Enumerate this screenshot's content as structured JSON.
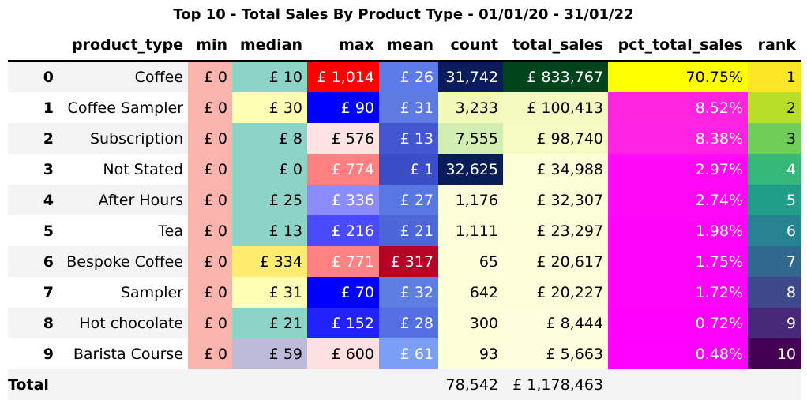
{
  "title": "Top 10 - Total Sales By Product Type - 01/01/20 - 31/01/22",
  "columns": [
    "",
    "product_type",
    "min",
    "median",
    "max",
    "mean",
    "count",
    "total_sales",
    "pct_total_sales",
    "rank"
  ],
  "rows": [
    {
      "idx": "0",
      "product_type": "Coffee",
      "min": "£ 0",
      "median": "£ 10",
      "max": "£ 1,014",
      "mean": "£ 26",
      "count": "31,742",
      "total_sales": "£ 833,767",
      "pct_total_sales": "70.75%",
      "rank": "1"
    },
    {
      "idx": "1",
      "product_type": "Coffee Sampler",
      "min": "£ 0",
      "median": "£ 30",
      "max": "£ 90",
      "mean": "£ 31",
      "count": "3,233",
      "total_sales": "£ 100,413",
      "pct_total_sales": "8.52%",
      "rank": "2"
    },
    {
      "idx": "2",
      "product_type": "Subscription",
      "min": "£ 0",
      "median": "£ 8",
      "max": "£ 576",
      "mean": "£ 13",
      "count": "7,555",
      "total_sales": "£ 98,740",
      "pct_total_sales": "8.38%",
      "rank": "3"
    },
    {
      "idx": "3",
      "product_type": "Not Stated",
      "min": "£ 0",
      "median": "£ 0",
      "max": "£ 774",
      "mean": "£ 1",
      "count": "32,625",
      "total_sales": "£ 34,988",
      "pct_total_sales": "2.97%",
      "rank": "4"
    },
    {
      "idx": "4",
      "product_type": "After Hours",
      "min": "£ 0",
      "median": "£ 25",
      "max": "£ 336",
      "mean": "£ 27",
      "count": "1,176",
      "total_sales": "£ 32,307",
      "pct_total_sales": "2.74%",
      "rank": "5"
    },
    {
      "idx": "5",
      "product_type": "Tea",
      "min": "£ 0",
      "median": "£ 13",
      "max": "£ 216",
      "mean": "£ 21",
      "count": "1,111",
      "total_sales": "£ 23,297",
      "pct_total_sales": "1.98%",
      "rank": "6"
    },
    {
      "idx": "6",
      "product_type": "Bespoke Coffee",
      "min": "£ 0",
      "median": "£ 334",
      "max": "£ 771",
      "mean": "£ 317",
      "count": "65",
      "total_sales": "£ 20,617",
      "pct_total_sales": "1.75%",
      "rank": "7"
    },
    {
      "idx": "7",
      "product_type": "Sampler",
      "min": "£ 0",
      "median": "£ 31",
      "max": "£ 70",
      "mean": "£ 32",
      "count": "642",
      "total_sales": "£ 20,227",
      "pct_total_sales": "1.72%",
      "rank": "8"
    },
    {
      "idx": "8",
      "product_type": "Hot chocolate",
      "min": "£ 0",
      "median": "£ 21",
      "max": "£ 152",
      "mean": "£ 28",
      "count": "300",
      "total_sales": "£ 8,444",
      "pct_total_sales": "0.72%",
      "rank": "9"
    },
    {
      "idx": "9",
      "product_type": "Barista Course",
      "min": "£ 0",
      "median": "£ 59",
      "max": "£ 600",
      "mean": "£ 61",
      "count": "93",
      "total_sales": "£ 5,663",
      "pct_total_sales": "0.48%",
      "rank": "10"
    }
  ],
  "total": {
    "label": "Total",
    "count": "78,542",
    "total_sales": "£ 1,178,463"
  },
  "cell_colors": {
    "min": [
      [
        "#fbb4ae",
        "#000"
      ],
      [
        "#fbb4ae",
        "#000"
      ],
      [
        "#fbb4ae",
        "#000"
      ],
      [
        "#fbb4ae",
        "#000"
      ],
      [
        "#fbb4ae",
        "#000"
      ],
      [
        "#fbb4ae",
        "#000"
      ],
      [
        "#fbb4ae",
        "#000"
      ],
      [
        "#fbb4ae",
        "#000"
      ],
      [
        "#fbb4ae",
        "#000"
      ],
      [
        "#fbb4ae",
        "#000"
      ]
    ],
    "median": [
      [
        "#8dd3c7",
        "#000"
      ],
      [
        "#ffffb3",
        "#000"
      ],
      [
        "#8dd3c7",
        "#000"
      ],
      [
        "#8dd3c7",
        "#000"
      ],
      [
        "#8dd3c7",
        "#000"
      ],
      [
        "#8dd3c7",
        "#000"
      ],
      [
        "#ffed6f",
        "#000"
      ],
      [
        "#ffffb3",
        "#000"
      ],
      [
        "#8dd3c7",
        "#000"
      ],
      [
        "#bebada",
        "#000"
      ]
    ],
    "max": [
      [
        "#ff0000",
        "#fff"
      ],
      [
        "#0000ff",
        "#fff"
      ],
      [
        "#ffe4e4",
        "#000"
      ],
      [
        "#ff8080",
        "#fff"
      ],
      [
        "#8c8cff",
        "#fff"
      ],
      [
        "#4a4aff",
        "#fff"
      ],
      [
        "#ff8383",
        "#fff"
      ],
      [
        "#0000ff",
        "#fff"
      ],
      [
        "#2222ff",
        "#fff"
      ],
      [
        "#ffe0e0",
        "#000"
      ]
    ],
    "mean": [
      [
        "#5d7be8",
        "#fff"
      ],
      [
        "#5d7be0",
        "#fff"
      ],
      [
        "#4358d0",
        "#fff"
      ],
      [
        "#3a4ec8",
        "#fff"
      ],
      [
        "#5877e0",
        "#fff"
      ],
      [
        "#4d67d8",
        "#fff"
      ],
      [
        "#b30326",
        "#fff"
      ],
      [
        "#5e7ee3",
        "#fff"
      ],
      [
        "#5570e0",
        "#fff"
      ],
      [
        "#7b9ff5",
        "#fff"
      ]
    ],
    "count": [
      [
        "#0a1c5c",
        "#fff"
      ],
      [
        "#f3fab7",
        "#000"
      ],
      [
        "#d3eeb3",
        "#000"
      ],
      [
        "#081d58",
        "#fff"
      ],
      [
        "#fdfed8",
        "#000"
      ],
      [
        "#fdfed9",
        "#000"
      ],
      [
        "#ffffd9",
        "#000"
      ],
      [
        "#fefed9",
        "#000"
      ],
      [
        "#ffffd9",
        "#000"
      ],
      [
        "#ffffd9",
        "#000"
      ]
    ],
    "total_sales": [
      [
        "#00441b",
        "#fff"
      ],
      [
        "#f5fbc0",
        "#000"
      ],
      [
        "#f5fbc2",
        "#000"
      ],
      [
        "#fcfed6",
        "#000"
      ],
      [
        "#fcfed7",
        "#000"
      ],
      [
        "#fdfed9",
        "#000"
      ],
      [
        "#fdfed9",
        "#000"
      ],
      [
        "#fdfed9",
        "#000"
      ],
      [
        "#ffffe0",
        "#000"
      ],
      [
        "#ffffe0",
        "#000"
      ]
    ],
    "pct_total_sales": [
      [
        "#ffff00",
        "#000"
      ],
      [
        "#ff24e0",
        "#fff"
      ],
      [
        "#ff22e2",
        "#fff"
      ],
      [
        "#ff08f8",
        "#fff"
      ],
      [
        "#ff08f8",
        "#fff"
      ],
      [
        "#ff05fa",
        "#fff"
      ],
      [
        "#ff04fb",
        "#fff"
      ],
      [
        "#ff04fb",
        "#fff"
      ],
      [
        "#ff02fd",
        "#fff"
      ],
      [
        "#ff00ff",
        "#fff"
      ]
    ],
    "rank": [
      [
        "#fde725",
        "#000"
      ],
      [
        "#b8de29",
        "#000"
      ],
      [
        "#6ece58",
        "#000"
      ],
      [
        "#35b779",
        "#fff"
      ],
      [
        "#1f9e89",
        "#fff"
      ],
      [
        "#26828e",
        "#fff"
      ],
      [
        "#31688e",
        "#fff"
      ],
      [
        "#3e4989",
        "#fff"
      ],
      [
        "#482878",
        "#fff"
      ],
      [
        "#440154",
        "#fff"
      ]
    ]
  }
}
